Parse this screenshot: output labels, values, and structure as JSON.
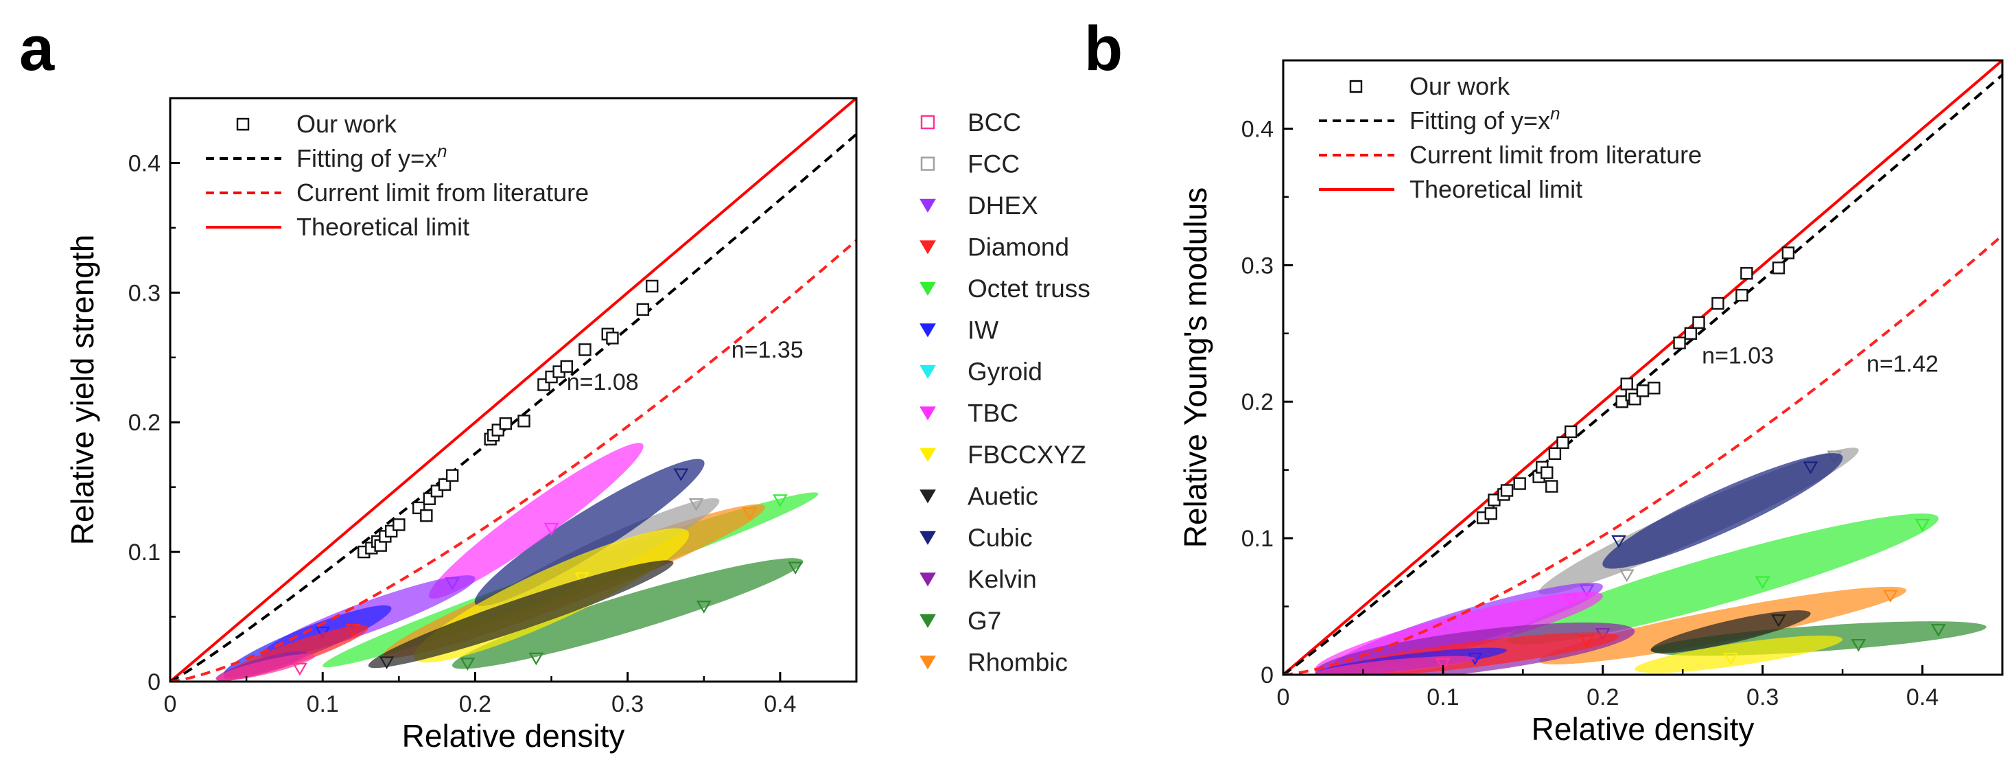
{
  "panels": {
    "a": {
      "letter": "a"
    },
    "b": {
      "letter": "b"
    }
  },
  "chart_data": [
    {
      "type": "scatter",
      "panel": "a",
      "xlabel": "Relative density",
      "ylabel": "Relative yield strength",
      "xlim": [
        0,
        0.45
      ],
      "ylim": [
        0,
        0.45
      ],
      "xticks": [
        0,
        0.1,
        0.2,
        0.3,
        0.4
      ],
      "yticks": [
        0,
        0.1,
        0.2,
        0.3,
        0.4
      ],
      "xtick_labels": [
        "0",
        "0.1",
        "0.2",
        "0.3",
        "0.4"
      ],
      "ytick_labels": [
        "0",
        "0.1",
        "0.2",
        "0.3",
        "0.4"
      ],
      "legend_main": [
        {
          "label": "Our work",
          "symbol": "square",
          "color": "#000000"
        },
        {
          "label": "Fitting of y=x",
          "sup": "n",
          "symbol": "dashed",
          "color": "#000000"
        },
        {
          "label": "Current limit from literature",
          "symbol": "dashed",
          "color": "#ff0000"
        },
        {
          "label": "Theoretical limit",
          "symbol": "solid",
          "color": "#ff0000"
        }
      ],
      "legend_lattices": [
        {
          "label": "BCC",
          "color": "#ff3399",
          "symbol": "square"
        },
        {
          "label": "FCC",
          "color": "#a0a0a0",
          "symbol": "square"
        },
        {
          "label": "DHEX",
          "color": "#9933ff",
          "symbol": "triangle"
        },
        {
          "label": "Diamond",
          "color": "#ff2222",
          "symbol": "triangle"
        },
        {
          "label": "Octet truss",
          "color": "#33ee33",
          "symbol": "triangle"
        },
        {
          "label": "IW",
          "color": "#2222ff",
          "symbol": "triangle"
        },
        {
          "label": "Gyroid",
          "color": "#22eeee",
          "symbol": "triangle"
        },
        {
          "label": "TBC",
          "color": "#ff33ff",
          "symbol": "triangle"
        },
        {
          "label": "FBCCXYZ",
          "color": "#ffee00",
          "symbol": "triangle"
        },
        {
          "label": "Auetic",
          "color": "#222222",
          "symbol": "triangle"
        },
        {
          "label": "Cubic",
          "color": "#1a237e",
          "symbol": "triangle"
        },
        {
          "label": "Kelvin",
          "color": "#8e24aa",
          "symbol": "triangle"
        },
        {
          "label": "G7",
          "color": "#2e8b2e",
          "symbol": "triangle"
        },
        {
          "label": "Rhombic",
          "color": "#ff8c1a",
          "symbol": "triangle"
        }
      ],
      "theoretical_limit": {
        "exponent": 1.0
      },
      "fit": {
        "exponent": 1.08,
        "coefficient": 1.0,
        "label": "n=1.08"
      },
      "literature_limit": {
        "exponent": 1.35,
        "coefficient": 1.0,
        "label": "n=1.35"
      },
      "our_work": {
        "x": [
          0.127,
          0.132,
          0.136,
          0.138,
          0.141,
          0.145,
          0.15,
          0.163,
          0.168,
          0.17,
          0.175,
          0.18,
          0.185,
          0.21,
          0.212,
          0.215,
          0.22,
          0.232,
          0.245,
          0.25,
          0.255,
          0.26,
          0.272,
          0.287,
          0.29,
          0.31,
          0.316
        ],
        "y": [
          0.1,
          0.103,
          0.108,
          0.105,
          0.112,
          0.116,
          0.121,
          0.134,
          0.128,
          0.141,
          0.147,
          0.152,
          0.159,
          0.187,
          0.19,
          0.194,
          0.199,
          0.201,
          0.229,
          0.235,
          0.239,
          0.243,
          0.256,
          0.268,
          0.265,
          0.287,
          0.305
        ]
      },
      "regions": [
        {
          "lattice": "G7",
          "from": [
            0.185,
            0.012
          ],
          "to": [
            0.415,
            0.093
          ],
          "width": 0.024,
          "markers": [
            [
              0.195,
              0.014
            ],
            [
              0.24,
              0.018
            ],
            [
              0.35,
              0.058
            ],
            [
              0.41,
              0.088
            ]
          ]
        },
        {
          "lattice": "Octet truss",
          "from": [
            0.1,
            0.012
          ],
          "to": [
            0.425,
            0.145
          ],
          "width": 0.02,
          "markers": [
            [
              0.4,
              0.14
            ]
          ]
        },
        {
          "lattice": "Rhombic",
          "from": [
            0.14,
            0.02
          ],
          "to": [
            0.39,
            0.135
          ],
          "width": 0.026,
          "markers": [
            [
              0.38,
              0.13
            ]
          ]
        },
        {
          "lattice": "FCC",
          "from": [
            0.2,
            0.05
          ],
          "to": [
            0.36,
            0.14
          ],
          "width": 0.022,
          "markers": [
            [
              0.345,
              0.137
            ]
          ]
        },
        {
          "lattice": "Cubic",
          "from": [
            0.2,
            0.06
          ],
          "to": [
            0.35,
            0.17
          ],
          "width": 0.028,
          "markers": [
            [
              0.335,
              0.16
            ]
          ]
        },
        {
          "lattice": "TBC",
          "from": [
            0.17,
            0.065
          ],
          "to": [
            0.31,
            0.183
          ],
          "width": 0.024,
          "markers": [
            [
              0.25,
              0.118
            ]
          ]
        },
        {
          "lattice": "FBCCXYZ",
          "from": [
            0.16,
            0.018
          ],
          "to": [
            0.34,
            0.115
          ],
          "width": 0.034,
          "markers": [
            [
              0.27,
              0.08
            ]
          ]
        },
        {
          "lattice": "DHEX",
          "from": [
            0.06,
            0.02
          ],
          "to": [
            0.2,
            0.08
          ],
          "width": 0.02,
          "markers": [
            [
              0.185,
              0.076
            ]
          ]
        },
        {
          "lattice": "IW",
          "from": [
            0.035,
            0.005
          ],
          "to": [
            0.145,
            0.057
          ],
          "width": 0.018,
          "markers": [
            [
              0.1,
              0.038
            ]
          ]
        },
        {
          "lattice": "Diamond",
          "from": [
            0.035,
            0.003
          ],
          "to": [
            0.13,
            0.042
          ],
          "width": 0.014,
          "markers": [
            [
              0.12,
              0.04
            ]
          ]
        },
        {
          "lattice": "Auetic",
          "from": [
            0.13,
            0.012
          ],
          "to": [
            0.33,
            0.092
          ],
          "width": 0.02,
          "markers": [
            [
              0.142,
              0.015
            ]
          ]
        },
        {
          "lattice": "Kelvin",
          "from": [
            0.03,
            0.002
          ],
          "to": [
            0.09,
            0.022
          ],
          "width": 0.01,
          "markers": [
            [
              0.08,
              0.018
            ]
          ]
        },
        {
          "lattice": "BCC",
          "from": [
            0.03,
            0.002
          ],
          "to": [
            0.095,
            0.02
          ],
          "width": 0.009,
          "markers": [
            [
              0.085,
              0.01
            ]
          ]
        }
      ]
    },
    {
      "type": "scatter",
      "panel": "b",
      "xlabel": "Relative density",
      "ylabel": "Relative Young's modulus",
      "xlim": [
        0,
        0.45
      ],
      "ylim": [
        0,
        0.45
      ],
      "xticks": [
        0,
        0.1,
        0.2,
        0.3,
        0.4
      ],
      "yticks": [
        0,
        0.1,
        0.2,
        0.3,
        0.4
      ],
      "xtick_labels": [
        "0",
        "0.1",
        "0.2",
        "0.3",
        "0.4"
      ],
      "ytick_labels": [
        "0",
        "0.1",
        "0.2",
        "0.3",
        "0.4"
      ],
      "legend_main": [
        {
          "label": "Our work",
          "symbol": "square",
          "color": "#000000"
        },
        {
          "label": "Fitting of y=x",
          "sup": "n",
          "symbol": "dashed",
          "color": "#000000"
        },
        {
          "label": "Current limit from literature",
          "symbol": "dashed",
          "color": "#ff0000"
        },
        {
          "label": "Theoretical limit",
          "symbol": "solid",
          "color": "#ff0000"
        }
      ],
      "theoretical_limit": {
        "exponent": 1.0
      },
      "fit": {
        "exponent": 1.03,
        "coefficient": 1.0,
        "label": "n=1.03"
      },
      "literature_limit": {
        "exponent": 1.42,
        "coefficient": 1.0,
        "label": "n=1.42"
      },
      "our_work": {
        "x": [
          0.125,
          0.13,
          0.132,
          0.138,
          0.14,
          0.148,
          0.16,
          0.162,
          0.165,
          0.168,
          0.17,
          0.175,
          0.18,
          0.212,
          0.215,
          0.218,
          0.22,
          0.225,
          0.232,
          0.248,
          0.255,
          0.26,
          0.272,
          0.287,
          0.29,
          0.31,
          0.316
        ],
        "y": [
          0.115,
          0.118,
          0.128,
          0.132,
          0.135,
          0.14,
          0.145,
          0.152,
          0.148,
          0.138,
          0.162,
          0.17,
          0.178,
          0.2,
          0.213,
          0.205,
          0.202,
          0.208,
          0.21,
          0.243,
          0.25,
          0.258,
          0.272,
          0.278,
          0.294,
          0.298,
          0.309
        ]
      },
      "regions": [
        {
          "lattice": "FCC",
          "from": [
            0.16,
            0.06
          ],
          "to": [
            0.36,
            0.165
          ],
          "width": 0.022,
          "markers": [
            [
              0.215,
              0.073
            ],
            [
              0.345,
              0.16
            ]
          ]
        },
        {
          "lattice": "Cubic",
          "from": [
            0.2,
            0.08
          ],
          "to": [
            0.35,
            0.16
          ],
          "width": 0.026,
          "markers": [
            [
              0.21,
              0.098
            ],
            [
              0.33,
              0.152
            ]
          ]
        },
        {
          "lattice": "Octet truss",
          "from": [
            0.14,
            0.025
          ],
          "to": [
            0.41,
            0.115
          ],
          "width": 0.03,
          "markers": [
            [
              0.4,
              0.11
            ],
            [
              0.3,
              0.068
            ]
          ]
        },
        {
          "lattice": "Rhombic",
          "from": [
            0.16,
            0.01
          ],
          "to": [
            0.39,
            0.062
          ],
          "width": 0.02,
          "markers": [
            [
              0.38,
              0.058
            ]
          ]
        },
        {
          "lattice": "G7",
          "from": [
            0.23,
            0.018
          ],
          "to": [
            0.44,
            0.035
          ],
          "width": 0.016,
          "markers": [
            [
              0.36,
              0.022
            ],
            [
              0.41,
              0.033
            ]
          ]
        },
        {
          "lattice": "FBCCXYZ",
          "from": [
            0.22,
            0.004
          ],
          "to": [
            0.35,
            0.026
          ],
          "width": 0.014,
          "markers": [
            [
              0.28,
              0.012
            ]
          ]
        },
        {
          "lattice": "Auetic",
          "from": [
            0.23,
            0.018
          ],
          "to": [
            0.33,
            0.045
          ],
          "width": 0.014,
          "markers": [
            [
              0.31,
              0.04
            ]
          ]
        },
        {
          "lattice": "DHEX",
          "from": [
            0.03,
            0.005
          ],
          "to": [
            0.2,
            0.065
          ],
          "width": 0.022,
          "markers": [
            [
              0.19,
              0.062
            ]
          ]
        },
        {
          "lattice": "TBC",
          "from": [
            0.02,
            0.004
          ],
          "to": [
            0.2,
            0.058
          ],
          "width": 0.022,
          "markers": [
            [
              0.18,
              0.055
            ]
          ]
        },
        {
          "lattice": "Kelvin",
          "from": [
            0.02,
            0.002
          ],
          "to": [
            0.22,
            0.032
          ],
          "width": 0.026,
          "markers": [
            [
              0.2,
              0.03
            ]
          ]
        },
        {
          "lattice": "Diamond",
          "from": [
            0.03,
            0.002
          ],
          "to": [
            0.21,
            0.028
          ],
          "width": 0.016,
          "markers": [
            [
              0.19,
              0.025
            ]
          ]
        },
        {
          "lattice": "IW",
          "from": [
            0.02,
            0.001
          ],
          "to": [
            0.14,
            0.018
          ],
          "width": 0.01,
          "markers": [
            [
              0.12,
              0.012
            ]
          ]
        },
        {
          "lattice": "BCC",
          "from": [
            0.02,
            0.001
          ],
          "to": [
            0.12,
            0.012
          ],
          "width": 0.008,
          "markers": [
            [
              0.1,
              0.008
            ]
          ]
        }
      ]
    }
  ]
}
